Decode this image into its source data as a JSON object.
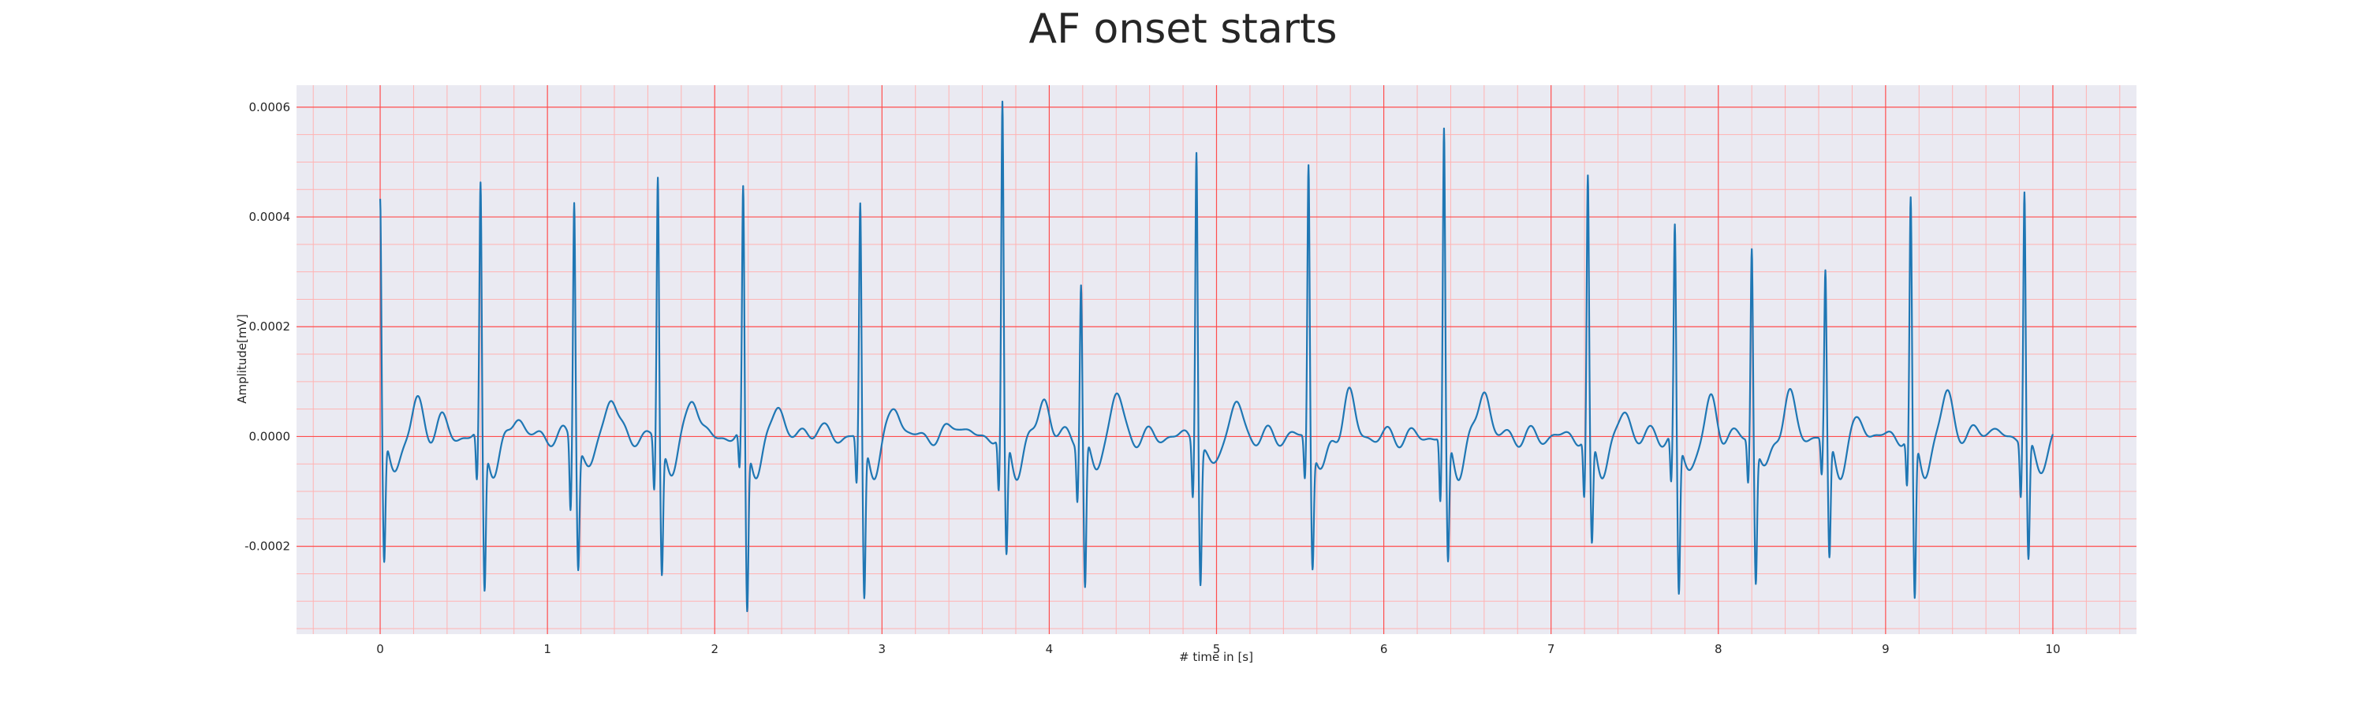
{
  "chart_data": {
    "type": "line",
    "title": "AF onset starts",
    "xlabel": "# time in [s]",
    "ylabel": "Amplitude[mV]",
    "xlim": [
      -0.5,
      10.5
    ],
    "ylim": [
      -0.00036,
      0.00064
    ],
    "x_ticks": [
      0,
      1,
      2,
      3,
      4,
      5,
      6,
      7,
      8,
      9,
      10
    ],
    "x_tick_labels": [
      "0",
      "1",
      "2",
      "3",
      "4",
      "5",
      "6",
      "7",
      "8",
      "9",
      "10"
    ],
    "y_ticks": [
      -0.0002,
      0.0,
      0.0002,
      0.0004,
      0.0006
    ],
    "y_tick_labels": [
      "-0.0002",
      "0.0000",
      "0.0002",
      "0.0004",
      "0.0006"
    ],
    "grid": true,
    "minor_grid": true,
    "legend": "none",
    "colors": {
      "line": "#1f77b4",
      "plot_background": "#eaeaf2",
      "major_grid": "#ff4d4d",
      "minor_grid": "#ffb3b3",
      "text": "#262626"
    },
    "series": [
      {
        "r_peaks": [
          {
            "t": 0.0,
            "r": 0.00043,
            "s": -0.00023,
            "q": 0.0
          },
          {
            "t": 0.6,
            "r": 0.000455,
            "s": -0.00027,
            "q": -9e-05
          },
          {
            "t": 1.16,
            "r": 0.000445,
            "s": -0.00022,
            "q": -0.00013
          },
          {
            "t": 1.66,
            "r": 0.000475,
            "s": -0.00024,
            "q": -0.0001
          },
          {
            "t": 2.17,
            "r": 0.000445,
            "s": -0.00031,
            "q": -7e-05
          },
          {
            "t": 2.87,
            "r": 0.00042,
            "s": -0.00029,
            "q": -9e-05
          },
          {
            "t": 3.72,
            "r": 0.0006,
            "s": -0.00022,
            "q": -0.0001
          },
          {
            "t": 4.19,
            "r": 0.00029,
            "s": -0.00027,
            "q": -0.0001
          },
          {
            "t": 4.88,
            "r": 0.00054,
            "s": -0.00025,
            "q": -0.0001
          },
          {
            "t": 5.55,
            "r": 0.0005,
            "s": -0.00022,
            "q": -8e-05
          },
          {
            "t": 6.36,
            "r": 0.000555,
            "s": -0.00023,
            "q": -0.00012
          },
          {
            "t": 7.22,
            "r": 0.000465,
            "s": -0.0002,
            "q": -0.00011
          },
          {
            "t": 7.74,
            "r": 0.00038,
            "s": -0.00028,
            "q": -9e-05
          },
          {
            "t": 8.2,
            "r": 0.00035,
            "s": -0.00025,
            "q": -8e-05
          },
          {
            "t": 8.64,
            "r": 0.0003,
            "s": -0.00022,
            "q": -7e-05
          },
          {
            "t": 9.15,
            "r": 0.000425,
            "s": -0.0003,
            "q": -9e-05
          },
          {
            "t": 9.83,
            "r": 0.000455,
            "s": -0.00022,
            "q": -0.0001
          }
        ],
        "t_waves": [
          {
            "t": 0.22,
            "a": 6e-05
          },
          {
            "t": 0.36,
            "a": 3e-05
          },
          {
            "t": 0.82,
            "a": 4e-05
          },
          {
            "t": 1.38,
            "a": 8e-05
          },
          {
            "t": 1.87,
            "a": 8e-05
          },
          {
            "t": 2.38,
            "a": 6e-05
          },
          {
            "t": 2.61,
            "a": 2e-05
          },
          {
            "t": 3.08,
            "a": 6e-05
          },
          {
            "t": 3.45,
            "a": 3e-05
          },
          {
            "t": 3.97,
            "a": 7e-05
          },
          {
            "t": 4.4,
            "a": 8e-05
          },
          {
            "t": 5.12,
            "a": 6e-05
          },
          {
            "t": 5.79,
            "a": 8e-05
          },
          {
            "t": 6.6,
            "a": 9e-05
          },
          {
            "t": 7.44,
            "a": 4e-05
          },
          {
            "t": 7.96,
            "a": 6e-05
          },
          {
            "t": 8.42,
            "a": 8e-05
          },
          {
            "t": 8.85,
            "a": 3e-05
          },
          {
            "t": 9.37,
            "a": 8e-05
          },
          {
            "t": 9.6,
            "a": 2e-05
          }
        ],
        "end_time": 10.0
      }
    ]
  }
}
